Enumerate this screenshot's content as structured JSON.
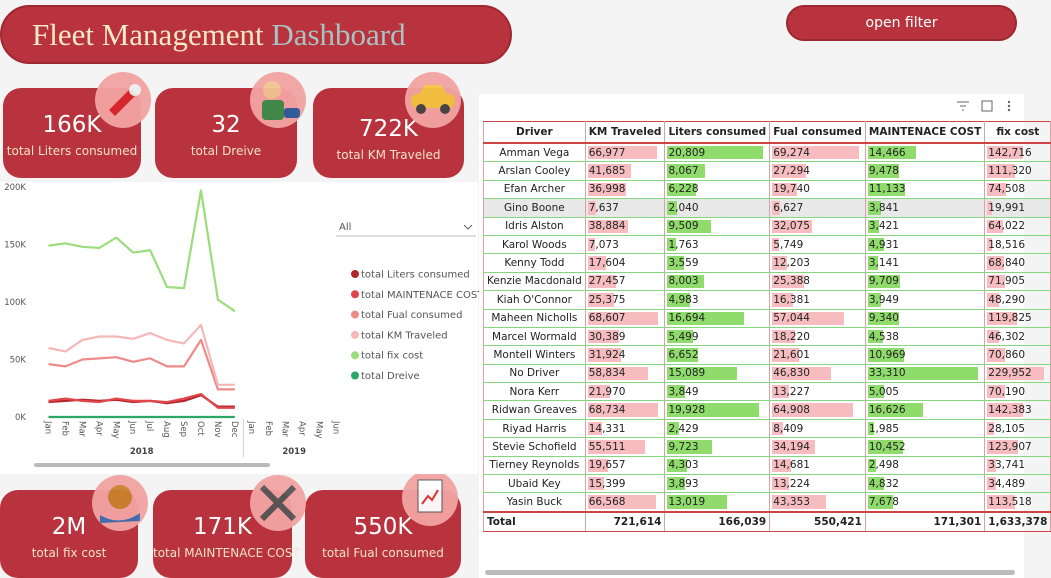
{
  "header": {
    "title_part1": "Fleet Management",
    "title_part2": "Dashboard",
    "button": "open filter"
  },
  "kpis": [
    {
      "value": "166K",
      "label": "total Liters consumed"
    },
    {
      "value": "32",
      "label": "total Dreive"
    },
    {
      "value": "722K",
      "label": "total KM Traveled"
    },
    {
      "value": "2M",
      "label": "total fix cost"
    },
    {
      "value": "171K",
      "label": "total MAINTENACE COST"
    },
    {
      "value": "550K",
      "label": "total Fual consumed"
    }
  ],
  "slicer": "All",
  "chart_data": {
    "type": "line",
    "categories": [
      "Jan",
      "Feb",
      "Mar",
      "Apr",
      "May",
      "Jun",
      "Jul",
      "Aug",
      "Sep",
      "Oct",
      "Nov",
      "Dec",
      "Jan",
      "Feb",
      "Mar",
      "Apr",
      "May",
      "Jun"
    ],
    "category_groups": [
      {
        "label": "2018",
        "size": 12
      },
      {
        "label": "2019",
        "size": 6
      }
    ],
    "ylim": [
      0,
      200000
    ],
    "yticks": [
      {
        "value": 0,
        "label": "0K"
      },
      {
        "value": 50000,
        "label": "50K"
      },
      {
        "value": 100000,
        "label": "100K"
      },
      {
        "value": 150000,
        "label": "150K"
      },
      {
        "value": 200000,
        "label": "200K"
      }
    ],
    "grid": false,
    "series": [
      {
        "name": "total Liters consumed",
        "color": "#b3262e",
        "values": [
          13000,
          14000,
          15000,
          14000,
          15000,
          13000,
          14000,
          12000,
          14000,
          19000,
          9000,
          9000,
          null,
          null,
          null,
          null,
          null,
          null
        ]
      },
      {
        "name": "total MAINTENACE COST",
        "color": "#e0474c",
        "values": [
          14000,
          16000,
          14000,
          13000,
          16000,
          14000,
          14000,
          13000,
          16000,
          20000,
          8000,
          8000,
          null,
          null,
          null,
          null,
          null,
          null
        ]
      },
      {
        "name": "total Fual consumed",
        "color": "#ef8a8a",
        "values": [
          46000,
          44000,
          50000,
          51000,
          52000,
          48000,
          51000,
          44000,
          44000,
          67000,
          24000,
          24000,
          null,
          null,
          null,
          null,
          null,
          null
        ]
      },
      {
        "name": "total KM Traveled",
        "color": "#f5b8b8",
        "values": [
          60000,
          57000,
          67000,
          70000,
          70000,
          68000,
          73000,
          67000,
          64000,
          80000,
          28000,
          28000,
          null,
          null,
          null,
          null,
          null,
          null
        ]
      },
      {
        "name": "total fix cost",
        "color": "#9bdc7c",
        "values": [
          149000,
          151000,
          148000,
          147000,
          156000,
          143000,
          145000,
          113000,
          112000,
          197000,
          102000,
          92000,
          null,
          null,
          null,
          null,
          null,
          null
        ]
      },
      {
        "name": "total Dreive",
        "color": "#2aa865",
        "values": [
          3,
          3,
          3,
          3,
          3,
          3,
          3,
          3,
          3,
          3,
          3,
          3,
          null,
          null,
          null,
          null,
          null,
          null
        ]
      }
    ]
  },
  "table": {
    "columns": [
      {
        "name": "Driver"
      },
      {
        "name": "KM Traveled",
        "bar_color": "#f6bcc0"
      },
      {
        "name": "Liters consumed",
        "bar_color": "#8fdc6c"
      },
      {
        "name": "Fual consumed",
        "bar_color": "#f6bcc0"
      },
      {
        "name": "MAINTENACE COST",
        "bar_color": "#8fdc6c"
      },
      {
        "name": "fix cost",
        "bar_color": "#f6bcc0"
      }
    ],
    "rows": [
      [
        "Amman Vega",
        "66,977",
        "20,809",
        "69,274",
        "14,466",
        "142,716"
      ],
      [
        "Arslan Cooley",
        "41,685",
        "8,067",
        "27,294",
        "9,478",
        "111,320"
      ],
      [
        "Efan Archer",
        "36,998",
        "6,228",
        "19,740",
        "11,133",
        "74,508"
      ],
      [
        "Gino Boone",
        "7,637",
        "2,040",
        "6,627",
        "3,841",
        "19,991"
      ],
      [
        "Idris Alston",
        "38,884",
        "9,509",
        "32,075",
        "3,421",
        "64,022"
      ],
      [
        "Karol Woods",
        "7,073",
        "1,763",
        "5,749",
        "4,931",
        "18,516"
      ],
      [
        "Kenny Todd",
        "17,604",
        "3,559",
        "12,203",
        "3,141",
        "68,840"
      ],
      [
        "Kenzie Macdonald",
        "27,457",
        "8,003",
        "25,388",
        "9,709",
        "71,905"
      ],
      [
        "Kiah O'Connor",
        "25,375",
        "4,983",
        "16,381",
        "3,949",
        "48,290"
      ],
      [
        "Maheen Nicholls",
        "68,607",
        "16,694",
        "57,044",
        "9,340",
        "119,825"
      ],
      [
        "Marcel Wormald",
        "30,389",
        "5,499",
        "18,220",
        "4,538",
        "46,302"
      ],
      [
        "Montell Winters",
        "31,924",
        "6,652",
        "21,601",
        "10,969",
        "70,860"
      ],
      [
        "No Driver",
        "58,834",
        "15,089",
        "46,830",
        "33,310",
        "229,952"
      ],
      [
        "Nora Kerr",
        "21,970",
        "3,849",
        "13,227",
        "5,005",
        "70,190"
      ],
      [
        "Ridwan Greaves",
        "68,734",
        "19,928",
        "64,908",
        "16,626",
        "142,383"
      ],
      [
        "Riyad Harris",
        "14,331",
        "2,429",
        "8,409",
        "1,985",
        "28,105"
      ],
      [
        "Stevie Schofield",
        "55,511",
        "9,723",
        "34,194",
        "10,452",
        "123,907"
      ],
      [
        "Tierney Reynolds",
        "19,657",
        "4,303",
        "14,681",
        "2,498",
        "33,741"
      ],
      [
        "Ubaid Key",
        "15,399",
        "3,893",
        "13,224",
        "4,832",
        "34,489"
      ],
      [
        "Yasin Buck",
        "66,568",
        "13,019",
        "43,353",
        "7,678",
        "113,518"
      ]
    ],
    "total": [
      "Total",
      "721,614",
      "166,039",
      "550,421",
      "171,301",
      "1,633,378"
    ]
  }
}
